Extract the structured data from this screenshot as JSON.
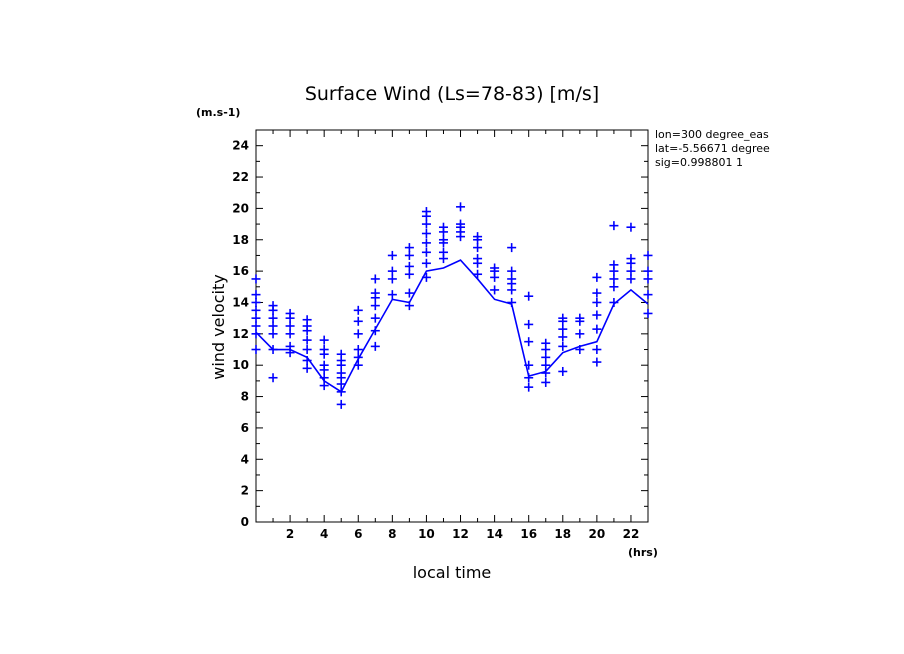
{
  "chart_data": {
    "type": "scatter",
    "title": "Surface Wind  (Ls=78-83) [m/s]",
    "xlabel": "local time",
    "ylabel": "wind velocity",
    "x_unit": "(hrs)",
    "y_unit": "(m.s-1)",
    "info": [
      "lon=300 degree_eas",
      "lat=-5.56671 degree",
      "sig=0.998801 1"
    ],
    "xlim": [
      0,
      23
    ],
    "ylim": [
      0,
      25
    ],
    "x_ticks": [
      2,
      4,
      6,
      8,
      10,
      12,
      14,
      16,
      18,
      20,
      22
    ],
    "y_ticks": [
      0,
      2,
      4,
      6,
      8,
      10,
      12,
      14,
      16,
      18,
      20,
      22,
      24
    ],
    "color": "#0000ff",
    "grid": false,
    "legend": "none",
    "series": [
      {
        "type": "scatter",
        "marker": "plus",
        "points": [
          [
            0,
            11.0
          ],
          [
            0,
            12.0
          ],
          [
            0,
            12.5
          ],
          [
            0,
            13.0
          ],
          [
            0,
            13.5
          ],
          [
            0,
            14.0
          ],
          [
            0,
            14.5
          ],
          [
            0,
            15.5
          ],
          [
            1,
            9.2
          ],
          [
            1,
            11.0
          ],
          [
            1,
            12.0
          ],
          [
            1,
            12.5
          ],
          [
            1,
            13.0
          ],
          [
            1,
            13.5
          ],
          [
            1,
            13.8
          ],
          [
            2,
            10.8
          ],
          [
            2,
            11.2
          ],
          [
            2,
            12.0
          ],
          [
            2,
            12.5
          ],
          [
            2,
            13.0
          ],
          [
            2,
            13.3
          ],
          [
            3,
            9.8
          ],
          [
            3,
            10.3
          ],
          [
            3,
            11.0
          ],
          [
            3,
            11.6
          ],
          [
            3,
            12.2
          ],
          [
            3,
            12.5
          ],
          [
            3,
            12.9
          ],
          [
            4,
            8.7
          ],
          [
            4,
            9.2
          ],
          [
            4,
            9.7
          ],
          [
            4,
            10.0
          ],
          [
            4,
            10.7
          ],
          [
            4,
            11.0
          ],
          [
            4,
            11.6
          ],
          [
            5,
            7.5
          ],
          [
            5,
            8.3
          ],
          [
            5,
            8.8
          ],
          [
            5,
            9.2
          ],
          [
            5,
            9.5
          ],
          [
            5,
            10.0
          ],
          [
            5,
            10.3
          ],
          [
            5,
            10.7
          ],
          [
            6,
            10.0
          ],
          [
            6,
            10.5
          ],
          [
            6,
            11.0
          ],
          [
            6,
            12.0
          ],
          [
            6,
            12.8
          ],
          [
            6,
            13.5
          ],
          [
            7,
            11.2
          ],
          [
            7,
            12.2
          ],
          [
            7,
            13.0
          ],
          [
            7,
            13.8
          ],
          [
            7,
            14.3
          ],
          [
            7,
            14.6
          ],
          [
            7,
            15.5
          ],
          [
            8,
            14.5
          ],
          [
            8,
            15.5
          ],
          [
            8,
            16.0
          ],
          [
            8,
            17.0
          ],
          [
            9,
            13.8
          ],
          [
            9,
            14.6
          ],
          [
            9,
            15.8
          ],
          [
            9,
            16.3
          ],
          [
            9,
            17.0
          ],
          [
            9,
            17.5
          ],
          [
            10,
            15.6
          ],
          [
            10,
            16.5
          ],
          [
            10,
            17.2
          ],
          [
            10,
            17.8
          ],
          [
            10,
            18.4
          ],
          [
            10,
            19.0
          ],
          [
            10,
            19.5
          ],
          [
            10,
            19.8
          ],
          [
            11,
            16.8
          ],
          [
            11,
            17.2
          ],
          [
            11,
            17.8
          ],
          [
            11,
            18.0
          ],
          [
            11,
            18.5
          ],
          [
            11,
            18.8
          ],
          [
            12,
            18.2
          ],
          [
            12,
            18.5
          ],
          [
            12,
            18.8
          ],
          [
            12,
            19.0
          ],
          [
            12,
            20.1
          ],
          [
            13,
            15.8
          ],
          [
            13,
            16.5
          ],
          [
            13,
            16.8
          ],
          [
            13,
            17.5
          ],
          [
            13,
            18.0
          ],
          [
            13,
            18.2
          ],
          [
            14,
            14.8
          ],
          [
            14,
            15.6
          ],
          [
            14,
            16.0
          ],
          [
            14,
            16.2
          ],
          [
            15,
            14.0
          ],
          [
            15,
            14.8
          ],
          [
            15,
            15.2
          ],
          [
            15,
            15.5
          ],
          [
            15,
            16.0
          ],
          [
            15,
            17.5
          ],
          [
            16,
            8.6
          ],
          [
            16,
            9.2
          ],
          [
            16,
            10.0
          ],
          [
            16,
            11.5
          ],
          [
            16,
            12.6
          ],
          [
            16,
            14.4
          ],
          [
            17,
            8.9
          ],
          [
            17,
            9.5
          ],
          [
            17,
            10.0
          ],
          [
            17,
            10.5
          ],
          [
            17,
            11.0
          ],
          [
            17,
            11.4
          ],
          [
            18,
            9.6
          ],
          [
            18,
            11.2
          ],
          [
            18,
            11.8
          ],
          [
            18,
            12.3
          ],
          [
            18,
            12.8
          ],
          [
            18,
            13.0
          ],
          [
            19,
            11.0
          ],
          [
            19,
            12.0
          ],
          [
            19,
            12.8
          ],
          [
            19,
            13.0
          ],
          [
            20,
            10.2
          ],
          [
            20,
            11.0
          ],
          [
            20,
            12.3
          ],
          [
            20,
            13.2
          ],
          [
            20,
            14.0
          ],
          [
            20,
            14.6
          ],
          [
            20,
            15.6
          ],
          [
            21,
            14.0
          ],
          [
            21,
            15.0
          ],
          [
            21,
            15.5
          ],
          [
            21,
            16.0
          ],
          [
            21,
            16.4
          ],
          [
            21,
            18.9
          ],
          [
            22,
            15.5
          ],
          [
            22,
            16.0
          ],
          [
            22,
            16.5
          ],
          [
            22,
            16.8
          ],
          [
            22,
            18.8
          ],
          [
            23,
            13.3
          ],
          [
            23,
            14.5
          ],
          [
            23,
            15.5
          ],
          [
            23,
            16.0
          ],
          [
            23,
            17.0
          ]
        ]
      },
      {
        "type": "line",
        "x": [
          0,
          1,
          2,
          3,
          4,
          5,
          6,
          7,
          8,
          9,
          10,
          11,
          12,
          13,
          14,
          15,
          16,
          17,
          18,
          19,
          20,
          21,
          22,
          23
        ],
        "y": [
          12.1,
          11.0,
          11.0,
          10.5,
          9.0,
          8.3,
          10.4,
          12.3,
          14.2,
          14.0,
          16.0,
          16.2,
          16.7,
          15.5,
          14.2,
          13.9,
          9.3,
          9.6,
          10.8,
          11.2,
          11.5,
          13.9,
          14.8,
          13.9
        ]
      }
    ]
  }
}
